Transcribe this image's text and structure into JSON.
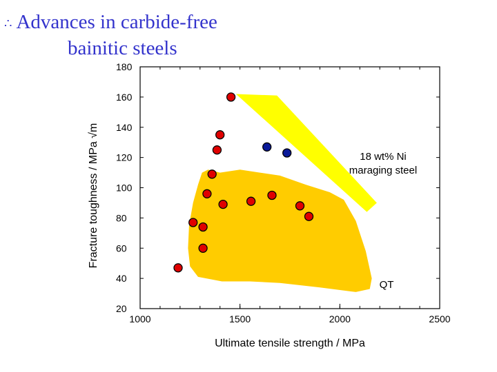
{
  "slide": {
    "bullet": "∴",
    "title_line1": "Advances in carbide-free",
    "title_line2": "bainitic steels"
  },
  "chart_data": {
    "type": "scatter",
    "title": "",
    "xlabel": "Ultimate tensile strength / MPa",
    "ylabel": "Fracture toughness / MPa √m",
    "xlim": [
      1000,
      2500
    ],
    "ylim": [
      20,
      180
    ],
    "x_ticks": [
      "1000",
      "1500",
      "2000",
      "2500"
    ],
    "y_ticks": [
      "20",
      "40",
      "60",
      "80",
      "100",
      "120",
      "140",
      "160",
      "180"
    ],
    "colors": {
      "region_yellow": "#ffff00",
      "region_orange": "#ffcc00",
      "red_points": "#e00000",
      "blue_points": "#0a1a99"
    },
    "regions": [
      {
        "label": "18 wt%  Ni maraging steel",
        "label_lines": [
          "18 wt%  Ni",
          "maraging steel"
        ],
        "color": "#ffff00"
      },
      {
        "label": "QT",
        "color": "#ffcc00"
      }
    ],
    "series": [
      {
        "color": "#e00000",
        "points": [
          {
            "x": 1190,
            "y": 47
          },
          {
            "x": 1265,
            "y": 77
          },
          {
            "x": 1315,
            "y": 74
          },
          {
            "x": 1315,
            "y": 60
          },
          {
            "x": 1335,
            "y": 96
          },
          {
            "x": 1360,
            "y": 109
          },
          {
            "x": 1385,
            "y": 125
          },
          {
            "x": 1400,
            "y": 135
          },
          {
            "x": 1415,
            "y": 89
          },
          {
            "x": 1455,
            "y": 160
          },
          {
            "x": 1555,
            "y": 91
          },
          {
            "x": 1660,
            "y": 95
          },
          {
            "x": 1800,
            "y": 88
          },
          {
            "x": 1845,
            "y": 81
          }
        ]
      },
      {
        "color": "#0a1a99",
        "points": [
          {
            "x": 1635,
            "y": 127
          },
          {
            "x": 1735,
            "y": 123
          }
        ]
      }
    ]
  }
}
